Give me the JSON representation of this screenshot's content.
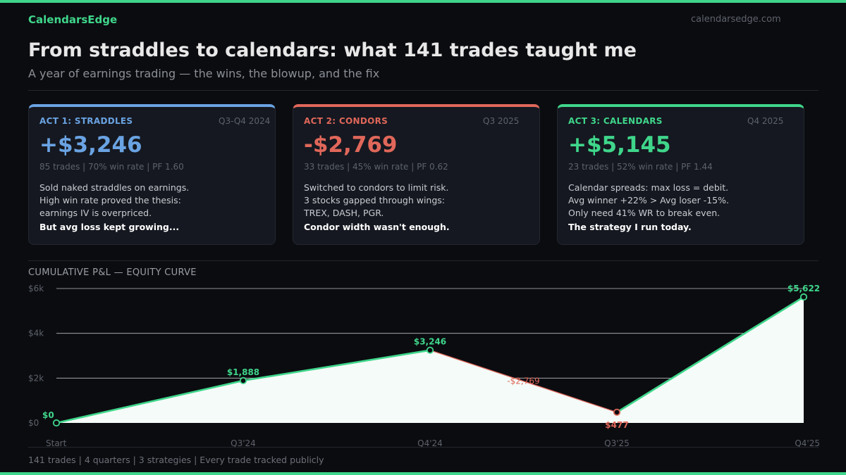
{
  "brand": "CalendarsEdge",
  "domain": "calendarsedge.com",
  "title": "From straddles to calendars: what 141 trades taught me",
  "subtitle": "A year of earnings trading — the wins, the blowup, and the fix",
  "colors": {
    "accent_green": "#3fd68b",
    "accent_blue": "#6aa3e3",
    "accent_red": "#e0675a"
  },
  "cards": [
    {
      "label": "ACT 1: STRADDLES",
      "period": "Q3-Q4 2024",
      "value": "+$3,246",
      "stats": "85 trades  |  70% win rate  |  PF 1.60",
      "lines": [
        "Sold naked straddles on earnings.",
        "High win rate proved the thesis:",
        "earnings IV is overpriced."
      ],
      "conclusion": "But avg loss kept growing...",
      "color": "#6aa3e3"
    },
    {
      "label": "ACT 2: CONDORS",
      "period": "Q3 2025",
      "value": "-$2,769",
      "stats": "33 trades  |  45% win rate  |  PF 0.62",
      "lines": [
        "Switched to condors to limit risk.",
        "3 stocks gapped through wings:",
        "TREX, DASH, PGR."
      ],
      "conclusion": "Condor width wasn't enough.",
      "color": "#e0675a"
    },
    {
      "label": "ACT 3: CALENDARS",
      "period": "Q4 2025",
      "value": "+$5,145",
      "stats": "23 trades  |  52% win rate  |  PF 1.44",
      "lines": [
        "Calendar spreads: max loss = debit.",
        "Avg winner +22% > Avg loser -15%.",
        "Only need 41% WR to break even."
      ],
      "conclusion": "The strategy I run today.",
      "color": "#3fd68b"
    }
  ],
  "chart_section_label": "CUMULATIVE P&L — EQUITY CURVE",
  "chart_data": {
    "type": "area",
    "title": "CUMULATIVE P&L — EQUITY CURVE",
    "categories": [
      "Start",
      "Q3'24",
      "Q4'24",
      "Q3'25",
      "Q4'25"
    ],
    "values": [
      0,
      1888,
      3246,
      477,
      5622
    ],
    "point_labels": [
      "$0",
      "$1,888",
      "$3,246",
      "$477",
      "$5,622"
    ],
    "segment_annotation": {
      "between": [
        2,
        3
      ],
      "text": "-$2,769",
      "color": "#e0675a"
    },
    "ylim": [
      0,
      6000
    ],
    "yticks": [
      0,
      2000,
      4000,
      6000
    ],
    "ytick_labels": [
      "$0",
      "$2k",
      "$4k",
      "$6k"
    ],
    "grid": true,
    "line_color": "#3fd68b",
    "drawdown_color": "#e0675a",
    "fill_color": "#f4fbf8"
  },
  "footer": "141 trades  |  4 quarters  |  3 strategies  |  Every trade tracked publicly"
}
